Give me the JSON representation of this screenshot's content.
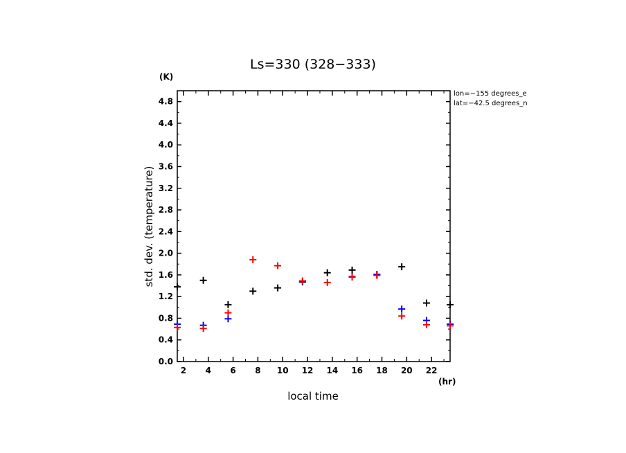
{
  "chart_data": {
    "type": "scatter",
    "title": "Ls=330 (328−333)",
    "xlabel": "local time",
    "ylabel": "std. dev. (temperature)",
    "x_unit": "(hr)",
    "y_unit": "(K)",
    "xlim": [
      1.5,
      23.5
    ],
    "ylim": [
      0.0,
      5.0
    ],
    "xticks": [
      2,
      4,
      6,
      8,
      10,
      12,
      14,
      16,
      18,
      20,
      22
    ],
    "yticks": [
      "0.0",
      "0.4",
      "0.8",
      "1.2",
      "1.6",
      "2.0",
      "2.4",
      "2.8",
      "3.2",
      "3.6",
      "4.0",
      "4.4",
      "4.8"
    ],
    "annotations": [
      "lon=−155 degrees_e",
      "lat=−42.5 degrees_n"
    ],
    "marker": "plus",
    "grid": false,
    "series": [
      {
        "color": "#000000",
        "x": [
          1.5,
          3.6,
          5.6,
          7.6,
          9.6,
          11.6,
          13.6,
          15.6,
          17.6,
          19.6,
          21.6,
          23.5
        ],
        "y": [
          1.38,
          1.5,
          1.05,
          1.3,
          1.36,
          1.47,
          1.64,
          1.69,
          1.6,
          1.75,
          1.08,
          1.05
        ]
      },
      {
        "color": "#0000ff",
        "x": [
          1.5,
          3.6,
          5.6,
          11.6,
          15.6,
          17.6,
          19.6,
          21.6,
          23.5
        ],
        "y": [
          0.69,
          0.67,
          0.79,
          1.48,
          1.57,
          1.61,
          0.97,
          0.76,
          0.69
        ]
      },
      {
        "color": "#ff0000",
        "x": [
          1.5,
          3.6,
          5.6,
          7.6,
          9.6,
          11.6,
          13.6,
          15.6,
          17.6,
          19.6,
          21.6,
          23.5
        ],
        "y": [
          0.63,
          0.61,
          0.9,
          1.88,
          1.77,
          1.49,
          1.46,
          1.56,
          1.59,
          0.84,
          0.68,
          0.66
        ]
      }
    ]
  }
}
